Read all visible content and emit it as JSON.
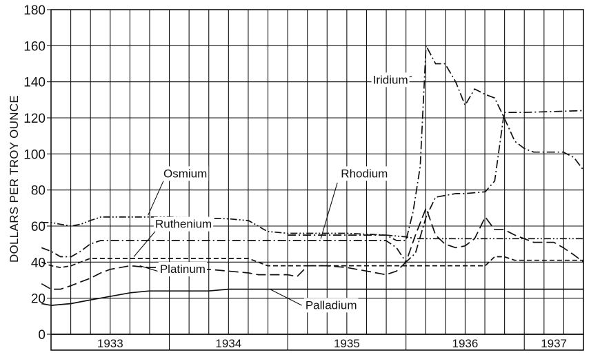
{
  "chart_data": {
    "type": "line",
    "title": "",
    "xlabel": "",
    "ylabel": "DOLLARS PER TROY OUNCE",
    "ylim": [
      0,
      180
    ],
    "yticks": [
      "0",
      "20",
      "40",
      "60",
      "80",
      "100",
      "120",
      "140",
      "160",
      "180"
    ],
    "xlim": [
      1933.0,
      1937.5
    ],
    "year_labels": [
      "1933",
      "1934",
      "1935",
      "1936",
      "1937"
    ],
    "grid": true,
    "legend": "inline labels",
    "series": [
      {
        "name": "Iridium",
        "style": "dash-dot",
        "points": [
          [
            1935.0,
            55
          ],
          [
            1935.5,
            55
          ],
          [
            1935.83,
            55
          ],
          [
            1935.92,
            52
          ],
          [
            1936.0,
            52
          ],
          [
            1936.06,
            68
          ],
          [
            1936.12,
            93
          ],
          [
            1936.17,
            160
          ],
          [
            1936.25,
            150
          ],
          [
            1936.33,
            150
          ],
          [
            1936.42,
            140
          ],
          [
            1936.5,
            127
          ],
          [
            1936.58,
            136
          ],
          [
            1936.67,
            133
          ],
          [
            1936.75,
            131
          ],
          [
            1936.83,
            120
          ],
          [
            1936.92,
            107
          ],
          [
            1937.0,
            103
          ],
          [
            1937.08,
            101
          ],
          [
            1937.17,
            101
          ],
          [
            1937.25,
            101
          ],
          [
            1937.33,
            101
          ],
          [
            1937.42,
            98
          ],
          [
            1937.5,
            91
          ]
        ]
      },
      {
        "name": "Osmium",
        "style": "dash-dot-dot",
        "points": [
          [
            1932.92,
            62
          ],
          [
            1933.0,
            62
          ],
          [
            1933.08,
            61
          ],
          [
            1933.17,
            60
          ],
          [
            1933.25,
            61
          ],
          [
            1933.33,
            63
          ],
          [
            1933.42,
            65
          ],
          [
            1933.5,
            65
          ],
          [
            1934.0,
            65
          ],
          [
            1934.5,
            64
          ],
          [
            1934.67,
            63
          ],
          [
            1934.75,
            60
          ],
          [
            1934.83,
            57
          ],
          [
            1935.0,
            56
          ],
          [
            1935.5,
            56
          ],
          [
            1935.83,
            55
          ],
          [
            1936.0,
            54
          ],
          [
            1936.08,
            53
          ],
          [
            1936.25,
            53
          ],
          [
            1936.42,
            53
          ],
          [
            1936.58,
            53
          ],
          [
            1936.67,
            53
          ],
          [
            1937.5,
            53
          ]
        ]
      },
      {
        "name": "Rhodium",
        "style": "dash-dot",
        "points": [
          [
            1932.92,
            48
          ],
          [
            1933.0,
            46
          ],
          [
            1933.08,
            43
          ],
          [
            1933.17,
            43
          ],
          [
            1933.25,
            46
          ],
          [
            1933.33,
            50
          ],
          [
            1933.42,
            52
          ],
          [
            1934.0,
            52
          ],
          [
            1934.5,
            52
          ],
          [
            1934.67,
            52
          ],
          [
            1934.75,
            52
          ],
          [
            1935.0,
            52
          ],
          [
            1935.5,
            52
          ],
          [
            1935.67,
            52
          ],
          [
            1935.83,
            52
          ],
          [
            1935.92,
            48
          ],
          [
            1936.0,
            40
          ],
          [
            1936.08,
            45
          ],
          [
            1936.17,
            65
          ],
          [
            1936.25,
            76
          ],
          [
            1936.42,
            78
          ],
          [
            1936.5,
            78
          ],
          [
            1936.67,
            79
          ],
          [
            1936.75,
            85
          ],
          [
            1936.83,
            123
          ],
          [
            1937.0,
            123
          ],
          [
            1937.5,
            124
          ]
        ]
      },
      {
        "name": "Ruthenium",
        "style": "dashed",
        "points": [
          [
            1932.92,
            40
          ],
          [
            1933.0,
            38
          ],
          [
            1933.08,
            37
          ],
          [
            1933.17,
            38
          ],
          [
            1933.25,
            40
          ],
          [
            1933.33,
            42
          ],
          [
            1933.5,
            42
          ],
          [
            1934.0,
            42
          ],
          [
            1934.5,
            42
          ],
          [
            1934.67,
            42
          ],
          [
            1934.75,
            40
          ],
          [
            1934.83,
            38
          ],
          [
            1935.0,
            38
          ],
          [
            1935.5,
            38
          ],
          [
            1935.83,
            38
          ],
          [
            1936.0,
            38
          ],
          [
            1936.5,
            38
          ],
          [
            1936.67,
            38
          ],
          [
            1936.75,
            43
          ],
          [
            1936.83,
            43
          ],
          [
            1936.92,
            41
          ],
          [
            1937.0,
            41
          ],
          [
            1937.5,
            41
          ]
        ]
      },
      {
        "name": "Platinum",
        "style": "long-dash",
        "points": [
          [
            1932.92,
            28
          ],
          [
            1933.0,
            25
          ],
          [
            1933.08,
            25
          ],
          [
            1933.17,
            27
          ],
          [
            1933.25,
            29
          ],
          [
            1933.33,
            31
          ],
          [
            1933.42,
            34
          ],
          [
            1933.5,
            36
          ],
          [
            1933.67,
            38
          ],
          [
            1933.83,
            37
          ],
          [
            1934.0,
            37
          ],
          [
            1934.17,
            36
          ],
          [
            1934.33,
            36
          ],
          [
            1934.5,
            35
          ],
          [
            1934.67,
            34
          ],
          [
            1934.75,
            33
          ],
          [
            1935.0,
            33
          ],
          [
            1935.08,
            32
          ],
          [
            1935.17,
            38
          ],
          [
            1935.33,
            38
          ],
          [
            1935.5,
            37
          ],
          [
            1935.67,
            35
          ],
          [
            1935.83,
            33
          ],
          [
            1935.92,
            35
          ],
          [
            1936.0,
            40
          ],
          [
            1936.08,
            55
          ],
          [
            1936.17,
            70
          ],
          [
            1936.25,
            55
          ],
          [
            1936.33,
            50
          ],
          [
            1936.42,
            48
          ],
          [
            1936.5,
            49
          ],
          [
            1936.58,
            53
          ],
          [
            1936.67,
            65
          ],
          [
            1936.75,
            58
          ],
          [
            1936.83,
            58
          ],
          [
            1936.92,
            55
          ],
          [
            1937.0,
            53
          ],
          [
            1937.08,
            51
          ],
          [
            1937.17,
            51
          ],
          [
            1937.25,
            51
          ],
          [
            1937.33,
            48
          ],
          [
            1937.42,
            44
          ],
          [
            1937.5,
            40
          ]
        ]
      },
      {
        "name": "Palladium",
        "style": "solid",
        "points": [
          [
            1932.92,
            17
          ],
          [
            1933.0,
            16
          ],
          [
            1933.17,
            17
          ],
          [
            1933.33,
            19
          ],
          [
            1933.5,
            21
          ],
          [
            1933.67,
            23
          ],
          [
            1933.83,
            24
          ],
          [
            1934.0,
            24
          ],
          [
            1934.17,
            24
          ],
          [
            1934.33,
            24
          ],
          [
            1934.5,
            25
          ],
          [
            1934.67,
            25
          ],
          [
            1935.0,
            25
          ],
          [
            1935.5,
            25
          ],
          [
            1936.0,
            25
          ],
          [
            1936.5,
            25
          ],
          [
            1937.0,
            25
          ],
          [
            1937.5,
            25
          ]
        ]
      }
    ]
  }
}
